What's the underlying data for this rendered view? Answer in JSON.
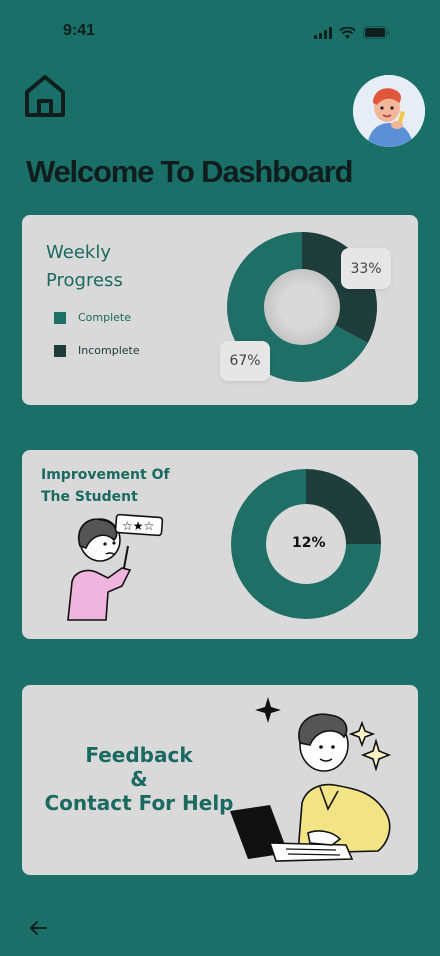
{
  "status_bar": {
    "time": "9:41"
  },
  "header": {
    "title": "Welcome To Dashboard"
  },
  "weekly": {
    "title": "Weekly Progress",
    "legend": [
      {
        "label": "Complete",
        "color": "#1f6f66"
      },
      {
        "label": "Incomplete",
        "color": "#1f3d3a"
      }
    ],
    "complete_pct": 67,
    "incomplete_pct": 33,
    "complete_label": "67%",
    "incomplete_label": "33%"
  },
  "improvement": {
    "title": "Improvement Of The Student",
    "pct": 12,
    "pct_label": "12%"
  },
  "feedback": {
    "line1": "Feedback",
    "line2": "&",
    "line3": "Contact For Help"
  },
  "colors": {
    "background": "#1a7068",
    "card": "#d9d9d9",
    "accent": "#1f6f66",
    "dark": "#1f3d3a"
  }
}
